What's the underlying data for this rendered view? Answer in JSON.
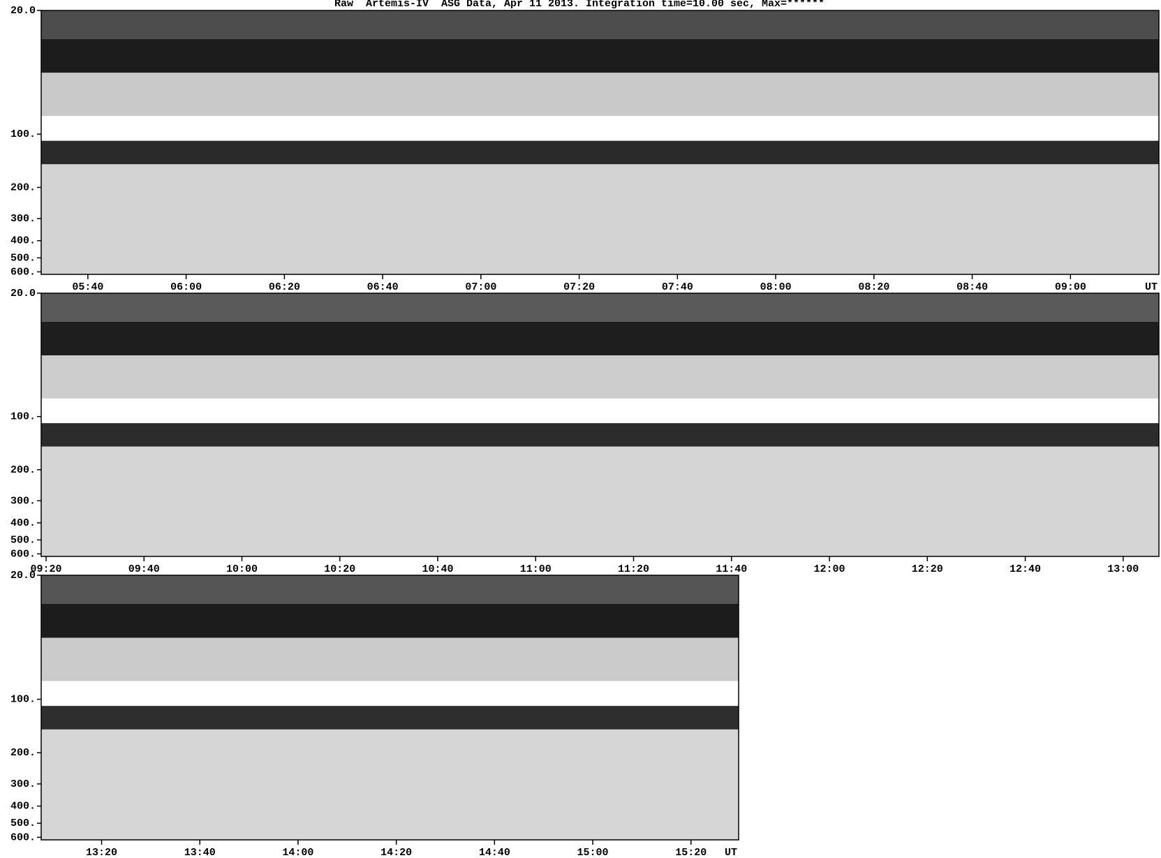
{
  "chart_data": [
    {
      "type": "spectrogram",
      "title": "Raw  Artemis-IV  ASG Data, Apr 11 2013. Integration time=10.00 sec, Max=******",
      "x_label": "UT",
      "xlim": [
        330.5,
        558
      ],
      "xticks": [
        {
          "value": 340,
          "label": "05:40"
        },
        {
          "value": 360,
          "label": "06:00"
        },
        {
          "value": 380,
          "label": "06:20"
        },
        {
          "value": 400,
          "label": "06:40"
        },
        {
          "value": 420,
          "label": "07:00"
        },
        {
          "value": 440,
          "label": "07:20"
        },
        {
          "value": 460,
          "label": "07:40"
        },
        {
          "value": 480,
          "label": "08:00"
        },
        {
          "value": 500,
          "label": "08:20"
        },
        {
          "value": 520,
          "label": "08:40"
        },
        {
          "value": 540,
          "label": "09:00"
        }
      ],
      "ylim": [
        20,
        620
      ],
      "y_scale": "log",
      "y_reversed": true,
      "yticks": [
        {
          "value": 20,
          "label": "20.0"
        },
        {
          "value": 100,
          "label": "100."
        },
        {
          "value": 200,
          "label": "200."
        },
        {
          "value": 300,
          "label": "300."
        },
        {
          "value": 400,
          "label": "400."
        },
        {
          "value": 500,
          "label": "500."
        },
        {
          "value": 600,
          "label": "600."
        }
      ],
      "bands": [
        {
          "from": 20,
          "to": 29,
          "color": "#4d4d4d"
        },
        {
          "from": 29,
          "to": 45,
          "color": "#1c1c1c"
        },
        {
          "from": 45,
          "to": 79,
          "color": "#c9c9c9"
        },
        {
          "from": 79,
          "to": 109,
          "color": "#ffffff"
        },
        {
          "from": 109,
          "to": 148,
          "color": "#2a2a2a"
        },
        {
          "from": 148,
          "to": 620,
          "color": "#d3d3d3"
        }
      ]
    },
    {
      "type": "spectrogram",
      "xlim": [
        559,
        787.3
      ],
      "xticks": [
        {
          "value": 560,
          "label": "09:20"
        },
        {
          "value": 580,
          "label": "09:40"
        },
        {
          "value": 600,
          "label": "10:00"
        },
        {
          "value": 620,
          "label": "10:20"
        },
        {
          "value": 640,
          "label": "10:40"
        },
        {
          "value": 660,
          "label": "11:00"
        },
        {
          "value": 680,
          "label": "11:20"
        },
        {
          "value": 700,
          "label": "11:40"
        },
        {
          "value": 720,
          "label": "12:00"
        },
        {
          "value": 740,
          "label": "12:20"
        },
        {
          "value": 760,
          "label": "12:40"
        },
        {
          "value": 780,
          "label": "13:00"
        }
      ],
      "ylim": [
        20,
        620
      ],
      "y_scale": "log",
      "y_reversed": true,
      "yticks": [
        {
          "value": 20,
          "label": "20.0"
        },
        {
          "value": 100,
          "label": "100."
        },
        {
          "value": 200,
          "label": "200."
        },
        {
          "value": 300,
          "label": "300."
        },
        {
          "value": 400,
          "label": "400."
        },
        {
          "value": 500,
          "label": "500."
        },
        {
          "value": 600,
          "label": "600."
        }
      ],
      "bands": [
        {
          "from": 20,
          "to": 29,
          "color": "#5a5a5a"
        },
        {
          "from": 29,
          "to": 45,
          "color": "#1e1e1e"
        },
        {
          "from": 45,
          "to": 79,
          "color": "#cdcdcd"
        },
        {
          "from": 79,
          "to": 109,
          "color": "#ffffff"
        },
        {
          "from": 109,
          "to": 148,
          "color": "#2c2c2c"
        },
        {
          "from": 148,
          "to": 620,
          "color": "#d5d5d5"
        }
      ]
    },
    {
      "type": "spectrogram",
      "x_label": "UT",
      "xlim": [
        787.7,
        929.7
      ],
      "xticks": [
        {
          "value": 800,
          "label": "13:20"
        },
        {
          "value": 820,
          "label": "13:40"
        },
        {
          "value": 840,
          "label": "14:00"
        },
        {
          "value": 860,
          "label": "14:20"
        },
        {
          "value": 880,
          "label": "14:40"
        },
        {
          "value": 900,
          "label": "15:00"
        },
        {
          "value": 920,
          "label": "15:20"
        }
      ],
      "ylim": [
        20,
        620
      ],
      "y_scale": "log",
      "y_reversed": true,
      "yticks": [
        {
          "value": 20,
          "label": "20.0"
        },
        {
          "value": 100,
          "label": "100."
        },
        {
          "value": 200,
          "label": "200."
        },
        {
          "value": 300,
          "label": "300."
        },
        {
          "value": 400,
          "label": "400."
        },
        {
          "value": 500,
          "label": "500."
        },
        {
          "value": 600,
          "label": "600."
        }
      ],
      "bands": [
        {
          "from": 20,
          "to": 29,
          "color": "#555555"
        },
        {
          "from": 29,
          "to": 45,
          "color": "#1c1c1c"
        },
        {
          "from": 45,
          "to": 79,
          "color": "#cbcbcb"
        },
        {
          "from": 79,
          "to": 109,
          "color": "#ffffff"
        },
        {
          "from": 109,
          "to": 148,
          "color": "#2e2e2e"
        },
        {
          "from": 148,
          "to": 620,
          "color": "#d6d6d6"
        }
      ]
    }
  ]
}
